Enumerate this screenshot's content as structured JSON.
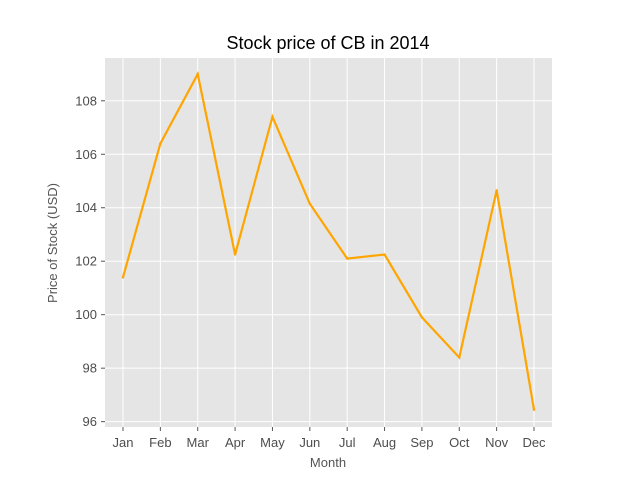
{
  "chart_data": {
    "type": "line",
    "title": "Stock price of CB in 2014",
    "xlabel": "Month",
    "ylabel": "Price of Stock (USD)",
    "categories": [
      "Jan",
      "Feb",
      "Mar",
      "Apr",
      "May",
      "Jun",
      "Jul",
      "Aug",
      "Sep",
      "Oct",
      "Nov",
      "Dec"
    ],
    "series": [
      {
        "values": [
          101.4,
          106.4,
          109.0,
          102.25,
          107.4,
          104.15,
          102.1,
          102.25,
          99.9,
          98.4,
          104.65,
          96.45
        ],
        "color": "#ffa500"
      }
    ],
    "yticks": [
      96,
      98,
      100,
      102,
      104,
      106,
      108
    ],
    "ylim": [
      95.8,
      109.6
    ],
    "grid": true,
    "plot_background": "#e5e5e5",
    "grid_color": "#ffffff"
  }
}
